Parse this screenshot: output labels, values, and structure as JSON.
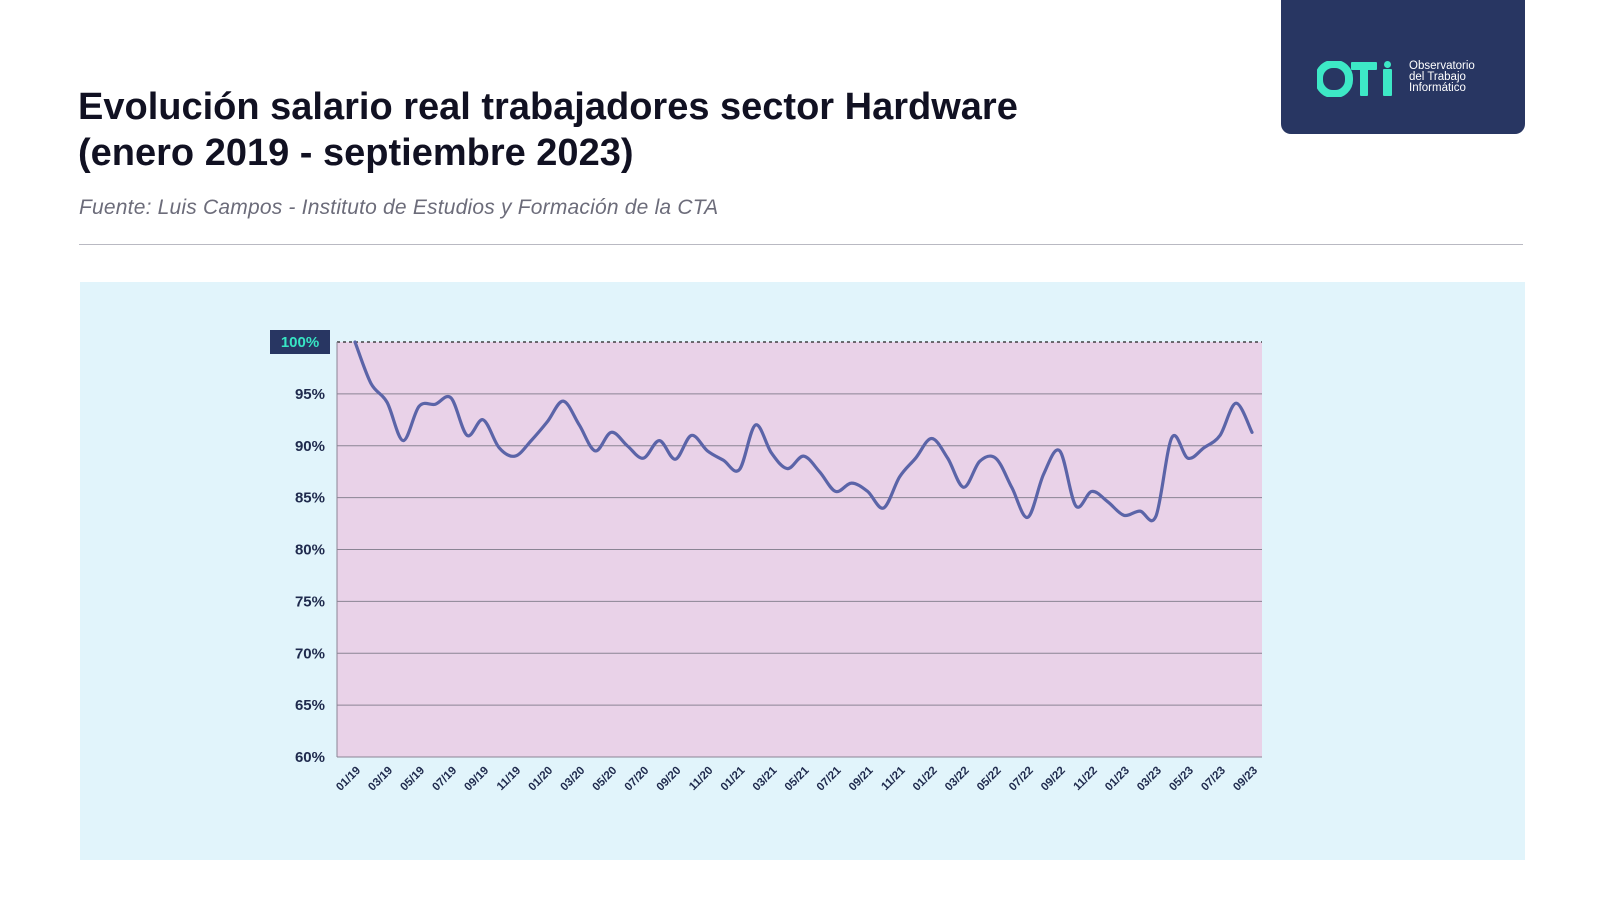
{
  "title_lines": [
    "Evolución salario real trabajadores sector Hardware",
    "(enero 2019 - septiembre 2023)"
  ],
  "source": "Fuente: Luis Campos - Instituto de Estudios y Formación de la CTA",
  "logo": {
    "mark": "OTI",
    "text_lines": [
      "Observatorio",
      "del Trabajo",
      "Informático"
    ],
    "colors": {
      "background": "#283662",
      "mark": "#3de8c6",
      "text": "#ffffff"
    }
  },
  "colors": {
    "panel": "#e1f4fb",
    "plot_area": "#e9d2e8",
    "line": "#5b64a8",
    "grid": "#8a8494",
    "reference_label_bg": "#283662",
    "reference_label_text": "#37e6c4"
  },
  "chart_data": {
    "type": "line",
    "title": "Evolución salario real trabajadores sector Hardware (enero 2019 - septiembre 2023)",
    "xlabel": "",
    "ylabel": "",
    "grid": true,
    "legend": "none",
    "y_tick_values": [
      60,
      65,
      70,
      75,
      80,
      85,
      90,
      95,
      100
    ],
    "y_tick_labels": [
      "60%",
      "65%",
      "70%",
      "75%",
      "80%",
      "85%",
      "90%",
      "95%",
      "100%"
    ],
    "ylim": [
      60,
      100
    ],
    "reference_line": {
      "value": 100,
      "label": "100%",
      "style": "dashed"
    },
    "x_tick_labels": [
      "01/19",
      "03/19",
      "05/19",
      "07/19",
      "09/19",
      "11/19",
      "01/20",
      "03/20",
      "05/20",
      "07/20",
      "09/20",
      "11/20",
      "01/21",
      "03/21",
      "05/21",
      "07/21",
      "09/21",
      "11/21",
      "01/22",
      "03/22",
      "05/22",
      "07/22",
      "09/22",
      "11/22",
      "01/23",
      "03/23",
      "05/23",
      "07/23",
      "09/23"
    ],
    "x": [
      "01/19",
      "02/19",
      "03/19",
      "04/19",
      "05/19",
      "06/19",
      "07/19",
      "08/19",
      "09/19",
      "10/19",
      "11/19",
      "12/19",
      "01/20",
      "02/20",
      "03/20",
      "04/20",
      "05/20",
      "06/20",
      "07/20",
      "08/20",
      "09/20",
      "10/20",
      "11/20",
      "12/20",
      "01/21",
      "02/21",
      "03/21",
      "04/21",
      "05/21",
      "06/21",
      "07/21",
      "08/21",
      "09/21",
      "10/21",
      "11/21",
      "12/21",
      "01/22",
      "02/22",
      "03/22",
      "04/22",
      "05/22",
      "06/22",
      "07/22",
      "08/22",
      "09/22",
      "10/22",
      "11/22",
      "12/22",
      "01/23",
      "02/23",
      "03/23",
      "04/23",
      "05/23",
      "06/23",
      "07/23",
      "08/23",
      "09/23"
    ],
    "series": [
      {
        "values": [
          100,
          96.0,
          94.2,
          90.5,
          93.8,
          94.0,
          94.6,
          91.0,
          92.5,
          89.8,
          89.0,
          90.5,
          92.3,
          94.3,
          92.0,
          89.5,
          91.3,
          90.0,
          88.8,
          90.5,
          88.7,
          91.0,
          89.5,
          88.6,
          87.7,
          92.0,
          89.3,
          87.8,
          89.0,
          87.5,
          85.6,
          86.4,
          85.6,
          84.0,
          87.0,
          88.8,
          90.7,
          88.8,
          86.0,
          88.5,
          88.8,
          86.0,
          83.1,
          87.3,
          89.5,
          84.2,
          85.6,
          84.6,
          83.3,
          83.7,
          83.2,
          90.8,
          88.8,
          89.8,
          91.0,
          94.1,
          91.3
        ]
      }
    ]
  }
}
